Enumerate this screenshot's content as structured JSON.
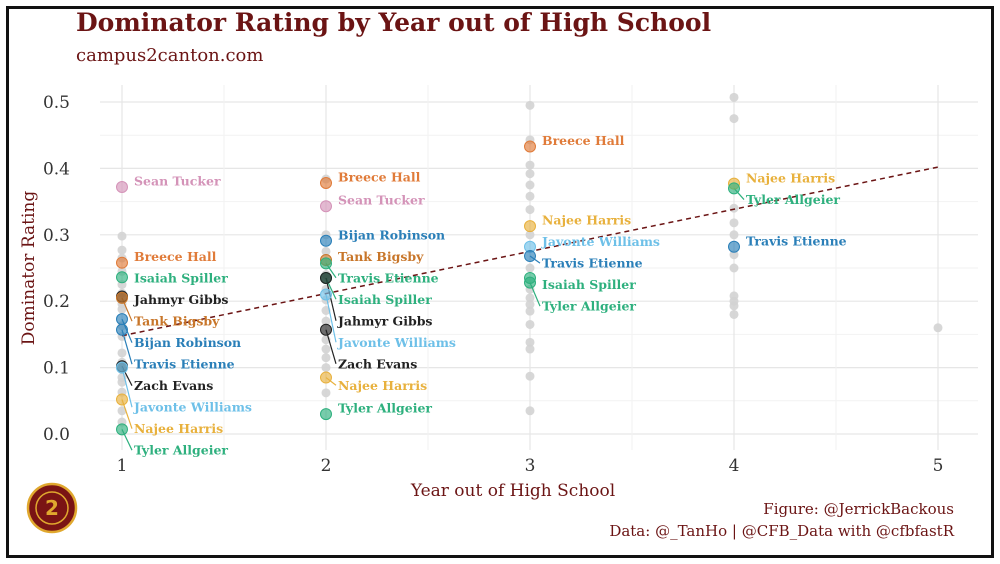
{
  "title": "Dominator Rating by Year out of High School",
  "subtitle": "campus2canton.com",
  "caption_figure": "Figure: @JerrickBackous",
  "caption_data": "Data: @_TanHo | @CFB_Data with @cfbfastR",
  "colors": {
    "title": "#6b1414",
    "trend": "#6b1414",
    "background_points": "#d3d3d3",
    "logo_fill": "#7a1414",
    "logo_ring": "#e0a82e"
  },
  "chart_data": {
    "type": "scatter",
    "xlabel": "Year out of High School",
    "ylabel": "Dominator Rating",
    "xlim": [
      0.95,
      5.1
    ],
    "ylim": [
      -0.02,
      0.52
    ],
    "x_ticks": [
      1,
      2,
      3,
      4,
      5
    ],
    "y_ticks": [
      0.0,
      0.1,
      0.2,
      0.3,
      0.4,
      0.5
    ],
    "grid": true,
    "trend_line": {
      "style": "dashed",
      "x": [
        1,
        5
      ],
      "y": [
        0.148,
        0.402
      ]
    },
    "background_points": [
      {
        "x": 1,
        "y": 0.298
      },
      {
        "x": 1,
        "y": 0.277
      },
      {
        "x": 1,
        "y": 0.265
      },
      {
        "x": 1,
        "y": 0.245
      },
      {
        "x": 1,
        "y": 0.225
      },
      {
        "x": 1,
        "y": 0.212
      },
      {
        "x": 1,
        "y": 0.196
      },
      {
        "x": 1,
        "y": 0.188
      },
      {
        "x": 1,
        "y": 0.163
      },
      {
        "x": 1,
        "y": 0.147
      },
      {
        "x": 1,
        "y": 0.122
      },
      {
        "x": 1,
        "y": 0.108
      },
      {
        "x": 1,
        "y": 0.097
      },
      {
        "x": 1,
        "y": 0.085
      },
      {
        "x": 1,
        "y": 0.078
      },
      {
        "x": 1,
        "y": 0.063
      },
      {
        "x": 1,
        "y": 0.035
      },
      {
        "x": 1,
        "y": 0.018
      },
      {
        "x": 2,
        "y": 0.384
      },
      {
        "x": 2,
        "y": 0.3
      },
      {
        "x": 2,
        "y": 0.275
      },
      {
        "x": 2,
        "y": 0.24
      },
      {
        "x": 2,
        "y": 0.218
      },
      {
        "x": 2,
        "y": 0.202
      },
      {
        "x": 2,
        "y": 0.186
      },
      {
        "x": 2,
        "y": 0.17
      },
      {
        "x": 2,
        "y": 0.142
      },
      {
        "x": 2,
        "y": 0.128
      },
      {
        "x": 2,
        "y": 0.115
      },
      {
        "x": 2,
        "y": 0.1
      },
      {
        "x": 2,
        "y": 0.062
      },
      {
        "x": 3,
        "y": 0.495
      },
      {
        "x": 3,
        "y": 0.443
      },
      {
        "x": 3,
        "y": 0.405
      },
      {
        "x": 3,
        "y": 0.392
      },
      {
        "x": 3,
        "y": 0.375
      },
      {
        "x": 3,
        "y": 0.358
      },
      {
        "x": 3,
        "y": 0.338
      },
      {
        "x": 3,
        "y": 0.3
      },
      {
        "x": 3,
        "y": 0.25
      },
      {
        "x": 3,
        "y": 0.218
      },
      {
        "x": 3,
        "y": 0.205
      },
      {
        "x": 3,
        "y": 0.195
      },
      {
        "x": 3,
        "y": 0.185
      },
      {
        "x": 3,
        "y": 0.165
      },
      {
        "x": 3,
        "y": 0.138
      },
      {
        "x": 3,
        "y": 0.128
      },
      {
        "x": 3,
        "y": 0.087
      },
      {
        "x": 3,
        "y": 0.035
      },
      {
        "x": 4,
        "y": 0.507
      },
      {
        "x": 4,
        "y": 0.475
      },
      {
        "x": 4,
        "y": 0.34
      },
      {
        "x": 4,
        "y": 0.318
      },
      {
        "x": 4,
        "y": 0.3
      },
      {
        "x": 4,
        "y": 0.27
      },
      {
        "x": 4,
        "y": 0.25
      },
      {
        "x": 4,
        "y": 0.208
      },
      {
        "x": 4,
        "y": 0.2
      },
      {
        "x": 4,
        "y": 0.193
      },
      {
        "x": 4,
        "y": 0.18
      },
      {
        "x": 5,
        "y": 0.16
      }
    ],
    "highlighted_points": [
      {
        "name": "Sean Tucker",
        "x": 1,
        "y": 0.372,
        "color": "#d493b8"
      },
      {
        "name": "Breece Hall",
        "x": 1,
        "y": 0.258,
        "color": "#e07b39"
      },
      {
        "name": "Isaiah Spiller",
        "x": 1,
        "y": 0.236,
        "color": "#2eb07e"
      },
      {
        "name": "Jahmyr Gibbs",
        "x": 1,
        "y": 0.207,
        "color": "#222222"
      },
      {
        "name": "Tank Bigsby",
        "x": 1,
        "y": 0.205,
        "color": "#c8762a"
      },
      {
        "name": "Bijan Robinson",
        "x": 1,
        "y": 0.173,
        "color": "#2a7fb8"
      },
      {
        "name": "Travis Etienne",
        "x": 1,
        "y": 0.157,
        "color": "#2a7fb8"
      },
      {
        "name": "Zach Evans",
        "x": 1,
        "y": 0.102,
        "color": "#222222"
      },
      {
        "name": "Javonte Williams",
        "x": 1,
        "y": 0.1,
        "color": "#6ec0e8"
      },
      {
        "name": "Najee Harris",
        "x": 1,
        "y": 0.052,
        "color": "#e8b13d"
      },
      {
        "name": "Tyler Allgeier",
        "x": 1,
        "y": 0.007,
        "color": "#2eb07e"
      },
      {
        "name": "Breece Hall",
        "x": 2,
        "y": 0.378,
        "color": "#e07b39"
      },
      {
        "name": "Sean Tucker",
        "x": 2,
        "y": 0.343,
        "color": "#d493b8"
      },
      {
        "name": "Bijan Robinson",
        "x": 2,
        "y": 0.291,
        "color": "#2a7fb8"
      },
      {
        "name": "Tank Bigsby",
        "x": 2,
        "y": 0.262,
        "color": "#c8762a"
      },
      {
        "name": "Travis Etienne",
        "x": 2,
        "y": 0.257,
        "color": "#2eb07e"
      },
      {
        "name": "Isaiah Spiller",
        "x": 2,
        "y": 0.235,
        "color": "#2eb07e"
      },
      {
        "name": "Jahmyr Gibbs",
        "x": 2,
        "y": 0.235,
        "color": "#222222"
      },
      {
        "name": "Javonte Williams",
        "x": 2,
        "y": 0.21,
        "color": "#6ec0e8"
      },
      {
        "name": "Zach Evans",
        "x": 2,
        "y": 0.157,
        "color": "#222222"
      },
      {
        "name": "Najee Harris",
        "x": 2,
        "y": 0.085,
        "color": "#e8b13d"
      },
      {
        "name": "Tyler Allgeier",
        "x": 2,
        "y": 0.03,
        "color": "#2eb07e"
      },
      {
        "name": "Breece Hall",
        "x": 3,
        "y": 0.433,
        "color": "#e07b39"
      },
      {
        "name": "Najee Harris",
        "x": 3,
        "y": 0.313,
        "color": "#e8b13d"
      },
      {
        "name": "Javonte Williams",
        "x": 3,
        "y": 0.282,
        "color": "#6ec0e8"
      },
      {
        "name": "Travis Etienne",
        "x": 3,
        "y": 0.268,
        "color": "#2a7fb8"
      },
      {
        "name": "Isaiah Spiller",
        "x": 3,
        "y": 0.235,
        "color": "#2eb07e"
      },
      {
        "name": "Tyler Allgeier",
        "x": 3,
        "y": 0.228,
        "color": "#2eb07e"
      },
      {
        "name": "Najee Harris",
        "x": 4,
        "y": 0.377,
        "color": "#e8b13d"
      },
      {
        "name": "Tyler Allgeier",
        "x": 4,
        "y": 0.37,
        "color": "#2eb07e"
      },
      {
        "name": "Travis Etienne",
        "x": 4,
        "y": 0.282,
        "color": "#2a7fb8"
      }
    ]
  }
}
